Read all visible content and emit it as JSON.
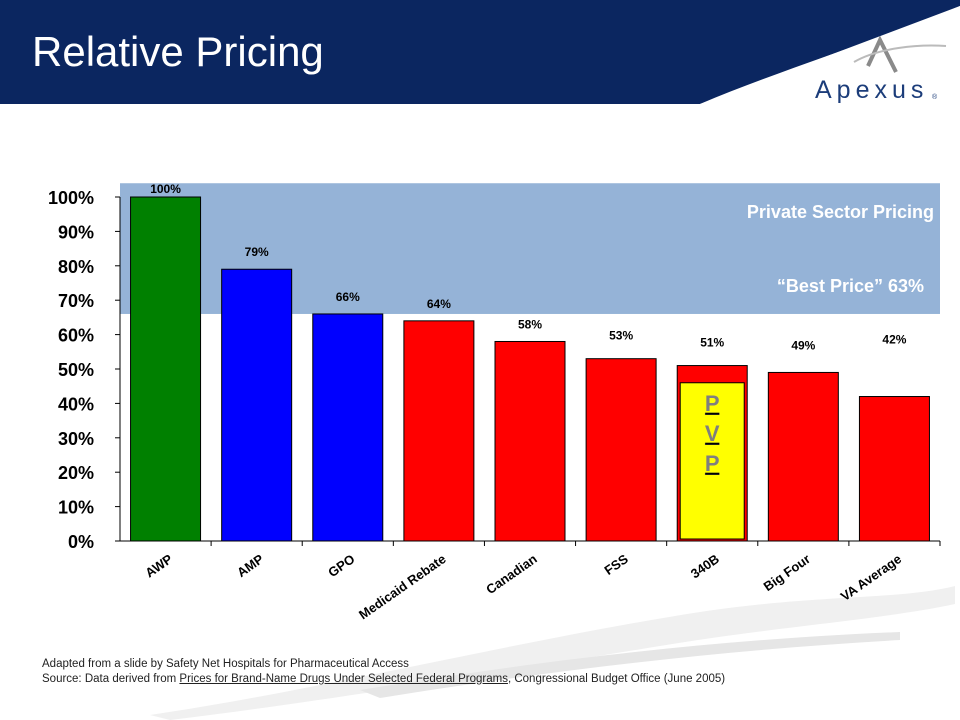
{
  "slide": {
    "title": "Relative Pricing",
    "logo_text": "Apexus",
    "logo_reg": "®"
  },
  "colors": {
    "header_navy": "#0b2660",
    "band_blue": "#95b3d7",
    "green": "#008000",
    "blue": "#0000ff",
    "red": "#ff0000",
    "yellow": "#ffff00",
    "pvp_text": "#7f7f7f"
  },
  "chart_data": {
    "type": "bar",
    "categories": [
      "AWP",
      "AMP",
      "GPO",
      "Medicaid Rebate",
      "Canadian",
      "FSS",
      "340B",
      "Big Four",
      "VA Average"
    ],
    "values": [
      100,
      79,
      66,
      64,
      58,
      53,
      51,
      49,
      42
    ],
    "data_labels": [
      "100%",
      "79%",
      "66%",
      "64%",
      "58%",
      "53%",
      "51%",
      "49%",
      "42%"
    ],
    "bar_colors": [
      "green",
      "blue",
      "blue",
      "red",
      "red",
      "red",
      "red",
      "red",
      "red"
    ],
    "ylim": [
      0,
      100
    ],
    "yticks": [
      "0%",
      "10%",
      "20%",
      "30%",
      "40%",
      "50%",
      "60%",
      "70%",
      "80%",
      "90%",
      "100%"
    ],
    "band": {
      "label": "Private Sector Pricing",
      "from": 66,
      "to": 104
    },
    "best_price_label": "“Best Price”  63%",
    "pvp": {
      "letters": [
        "P",
        "V",
        "P"
      ],
      "category": "340B",
      "top": 46
    },
    "grid": false,
    "legend": "none"
  },
  "footer": {
    "line1": "Adapted from  a slide by Safety Net Hospitals for Pharmaceutical Access",
    "line2_prefix": "Source: Data derived from ",
    "line2_link": "Prices for Brand-Name Drugs Under Selected Federal Programs",
    "line2_suffix": ", Congressional Budget Office (June 2005)"
  }
}
